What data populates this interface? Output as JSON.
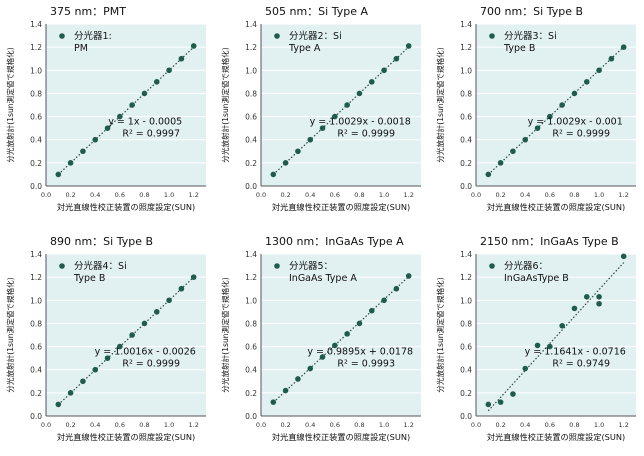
{
  "common": {
    "xlabel": "対光直線性校正装置の照度設定(SUN)",
    "ylabel": "分光放射計(1sun測定値で規格化)",
    "xticks": [
      "0.0",
      "0.2",
      "0.4",
      "0.6",
      "0.8",
      "1.0",
      "1.2"
    ],
    "yticks": [
      "0.0",
      "0.2",
      "0.4",
      "0.6",
      "0.8",
      "1.0",
      "1.2",
      "1.4"
    ],
    "colors": {
      "plot_bg": "#e1f0f1",
      "point": "#1f5c4c",
      "trend": "#2a4a3e",
      "grid": "#ffffff",
      "axis": "#555555"
    }
  },
  "chart_data": [
    {
      "type": "scatter",
      "title": "375 nm：PMT",
      "xlabel": "対光直線性校正装置の照度設定(SUN)",
      "ylabel": "分光放射計(1sun測定値で規格化)",
      "xlim": [
        0,
        1.3
      ],
      "ylim": [
        0,
        1.4
      ],
      "legend": [
        "分光器1:",
        "PM"
      ],
      "equation": "y = 1x - 0.0005",
      "r2": "R² = 0.9997",
      "trend": {
        "slope": 1.0,
        "intercept": -0.0005
      },
      "x": [
        0.1,
        0.2,
        0.3,
        0.4,
        0.5,
        0.6,
        0.7,
        0.8,
        0.9,
        1.0,
        1.1,
        1.2
      ],
      "y": [
        0.1,
        0.2,
        0.3,
        0.4,
        0.5,
        0.6,
        0.7,
        0.8,
        0.9,
        1.0,
        1.1,
        1.21
      ]
    },
    {
      "type": "scatter",
      "title": "505 nm：Si Type A",
      "xlabel": "対光直線性校正装置の照度設定(SUN)",
      "ylabel": "分光放射計(1sun測定値で規格化)",
      "xlim": [
        0,
        1.3
      ],
      "ylim": [
        0,
        1.4
      ],
      "legend": [
        "分光器2：Si",
        "Type A"
      ],
      "equation": "y = 1.0029x - 0.0018",
      "r2": "R² = 0.9999",
      "trend": {
        "slope": 1.0029,
        "intercept": -0.0018
      },
      "x": [
        0.1,
        0.2,
        0.3,
        0.4,
        0.5,
        0.6,
        0.7,
        0.8,
        0.9,
        1.0,
        1.1,
        1.2
      ],
      "y": [
        0.1,
        0.2,
        0.3,
        0.4,
        0.5,
        0.6,
        0.7,
        0.8,
        0.9,
        1.0,
        1.1,
        1.21
      ]
    },
    {
      "type": "scatter",
      "title": "700 nm：Si Type B",
      "xlabel": "対光直線性校正装置の照度設定(SUN)",
      "ylabel": "分光放射計(1sun測定値で規格化)",
      "xlim": [
        0,
        1.3
      ],
      "ylim": [
        0,
        1.4
      ],
      "legend": [
        "分光器3：Si",
        "Type B"
      ],
      "equation": "y = 1.0029x - 0.001",
      "r2": "R² = 0.9999",
      "trend": {
        "slope": 1.0029,
        "intercept": -0.001
      },
      "x": [
        0.1,
        0.2,
        0.3,
        0.4,
        0.5,
        0.6,
        0.7,
        0.8,
        0.9,
        1.0,
        1.1,
        1.2
      ],
      "y": [
        0.1,
        0.2,
        0.3,
        0.4,
        0.5,
        0.6,
        0.7,
        0.8,
        0.9,
        1.0,
        1.1,
        1.2
      ]
    },
    {
      "type": "scatter",
      "title": "890 nm：Si Type B",
      "xlabel": "対光直線性校正装置の照度設定(SUN)",
      "ylabel": "分光放射計(1sun測定値で規格化)",
      "xlim": [
        0,
        1.3
      ],
      "ylim": [
        0,
        1.4
      ],
      "legend": [
        "分光器4：Si",
        "Type B"
      ],
      "equation": "y = 1.0016x - 0.0026",
      "r2": "R² = 0.9999",
      "trend": {
        "slope": 1.0016,
        "intercept": -0.0026
      },
      "x": [
        0.1,
        0.2,
        0.3,
        0.4,
        0.5,
        0.6,
        0.7,
        0.8,
        0.9,
        1.0,
        1.1,
        1.2
      ],
      "y": [
        0.1,
        0.2,
        0.3,
        0.4,
        0.5,
        0.6,
        0.7,
        0.8,
        0.9,
        1.0,
        1.1,
        1.2
      ]
    },
    {
      "type": "scatter",
      "title": "1300 nm：InGaAs Type A",
      "xlabel": "対光直線性校正装置の照度設定(SUN)",
      "ylabel": "分光放射計(1sun測定値で規格化)",
      "xlim": [
        0,
        1.3
      ],
      "ylim": [
        0,
        1.4
      ],
      "legend": [
        "分光器5：",
        "InGaAs Type A"
      ],
      "equation": "y = 0.9895x + 0.0178",
      "r2": "R² = 0.9993",
      "trend": {
        "slope": 0.9895,
        "intercept": 0.0178
      },
      "x": [
        0.1,
        0.2,
        0.3,
        0.4,
        0.5,
        0.6,
        0.7,
        0.8,
        0.9,
        1.0,
        1.1,
        1.2
      ],
      "y": [
        0.12,
        0.22,
        0.32,
        0.41,
        0.51,
        0.61,
        0.71,
        0.8,
        0.91,
        1.0,
        1.1,
        1.21
      ]
    },
    {
      "type": "scatter",
      "title": "2150 nm：InGaAs Type B",
      "xlabel": "対光直線性校正装置の照度設定(SUN)",
      "ylabel": "分光放射計(1sun測定値で規格化)",
      "xlim": [
        0,
        1.3
      ],
      "ylim": [
        0,
        1.4
      ],
      "legend": [
        "分光器6：",
        "InGaAsType B"
      ],
      "equation": "y = 1.1641x - 0.0716",
      "r2": "R² = 0.9749",
      "trend": {
        "slope": 1.1641,
        "intercept": -0.0716
      },
      "x": [
        0.1,
        0.2,
        0.3,
        0.4,
        0.5,
        0.6,
        0.7,
        0.8,
        0.9,
        1.0,
        1.0,
        1.2
      ],
      "y": [
        0.1,
        0.12,
        0.19,
        0.41,
        0.61,
        0.6,
        0.78,
        0.93,
        1.03,
        1.03,
        0.97,
        1.38
      ]
    }
  ]
}
